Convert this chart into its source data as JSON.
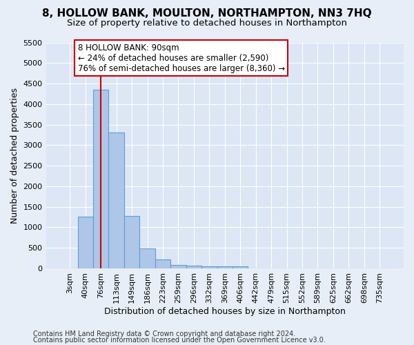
{
  "title": "8, HOLLOW BANK, MOULTON, NORTHAMPTON, NN3 7HQ",
  "subtitle": "Size of property relative to detached houses in Northampton",
  "xlabel": "Distribution of detached houses by size in Northampton",
  "ylabel": "Number of detached properties",
  "bar_labels": [
    "3sqm",
    "40sqm",
    "76sqm",
    "113sqm",
    "149sqm",
    "186sqm",
    "223sqm",
    "259sqm",
    "296sqm",
    "332sqm",
    "369sqm",
    "406sqm",
    "442sqm",
    "479sqm",
    "515sqm",
    "552sqm",
    "589sqm",
    "625sqm",
    "662sqm",
    "698sqm",
    "735sqm"
  ],
  "bar_values": [
    0,
    1260,
    4350,
    3300,
    1270,
    490,
    215,
    90,
    65,
    55,
    50,
    50,
    0,
    0,
    0,
    0,
    0,
    0,
    0,
    0,
    0
  ],
  "bar_color": "#aec6e8",
  "bar_edge_color": "#5a9fd4",
  "vline_x": 2,
  "vline_color": "#cc0000",
  "ylim": [
    0,
    5500
  ],
  "yticks": [
    0,
    500,
    1000,
    1500,
    2000,
    2500,
    3000,
    3500,
    4000,
    4500,
    5000,
    5500
  ],
  "annotation_line1": "8 HOLLOW BANK: 90sqm",
  "annotation_line2": "← 24% of detached houses are smaller (2,590)",
  "annotation_line3": "76% of semi-detached houses are larger (8,360) →",
  "annotation_box_color": "#ffffff",
  "annotation_box_edge": "#cc0000",
  "footer_line1": "Contains HM Land Registry data © Crown copyright and database right 2024.",
  "footer_line2": "Contains public sector information licensed under the Open Government Licence v3.0.",
  "bg_color": "#e8eef7",
  "plot_bg_color": "#dce6f5",
  "grid_color": "#ffffff",
  "title_fontsize": 11,
  "subtitle_fontsize": 9.5,
  "axis_label_fontsize": 9,
  "tick_fontsize": 8,
  "footer_fontsize": 7,
  "annotation_fontsize": 8.5
}
